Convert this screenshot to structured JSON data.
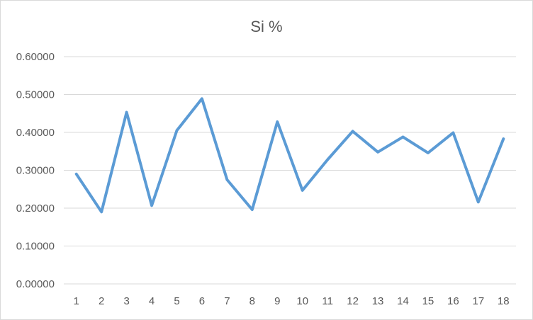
{
  "chart_data": {
    "type": "line",
    "title": "Si %",
    "xlabel": "",
    "ylabel": "",
    "categories": [
      "1",
      "2",
      "3",
      "4",
      "5",
      "6",
      "7",
      "8",
      "9",
      "10",
      "11",
      "12",
      "13",
      "14",
      "15",
      "16",
      "17",
      "18"
    ],
    "series": [
      {
        "values": [
          0.29,
          0.19,
          0.453,
          0.207,
          0.405,
          0.489,
          0.275,
          0.196,
          0.428,
          0.247,
          0.328,
          0.403,
          0.348,
          0.388,
          0.346,
          0.399,
          0.216,
          0.383
        ],
        "color": "#5b9bd5"
      }
    ],
    "ylim": [
      0,
      0.6
    ],
    "yticks": [
      "0.00000",
      "0.10000",
      "0.20000",
      "0.30000",
      "0.40000",
      "0.50000",
      "0.60000"
    ],
    "grid": true,
    "legend": "none"
  },
  "colors": {
    "line": "#5b9bd5",
    "grid": "#d9d9d9",
    "text": "#595959"
  }
}
